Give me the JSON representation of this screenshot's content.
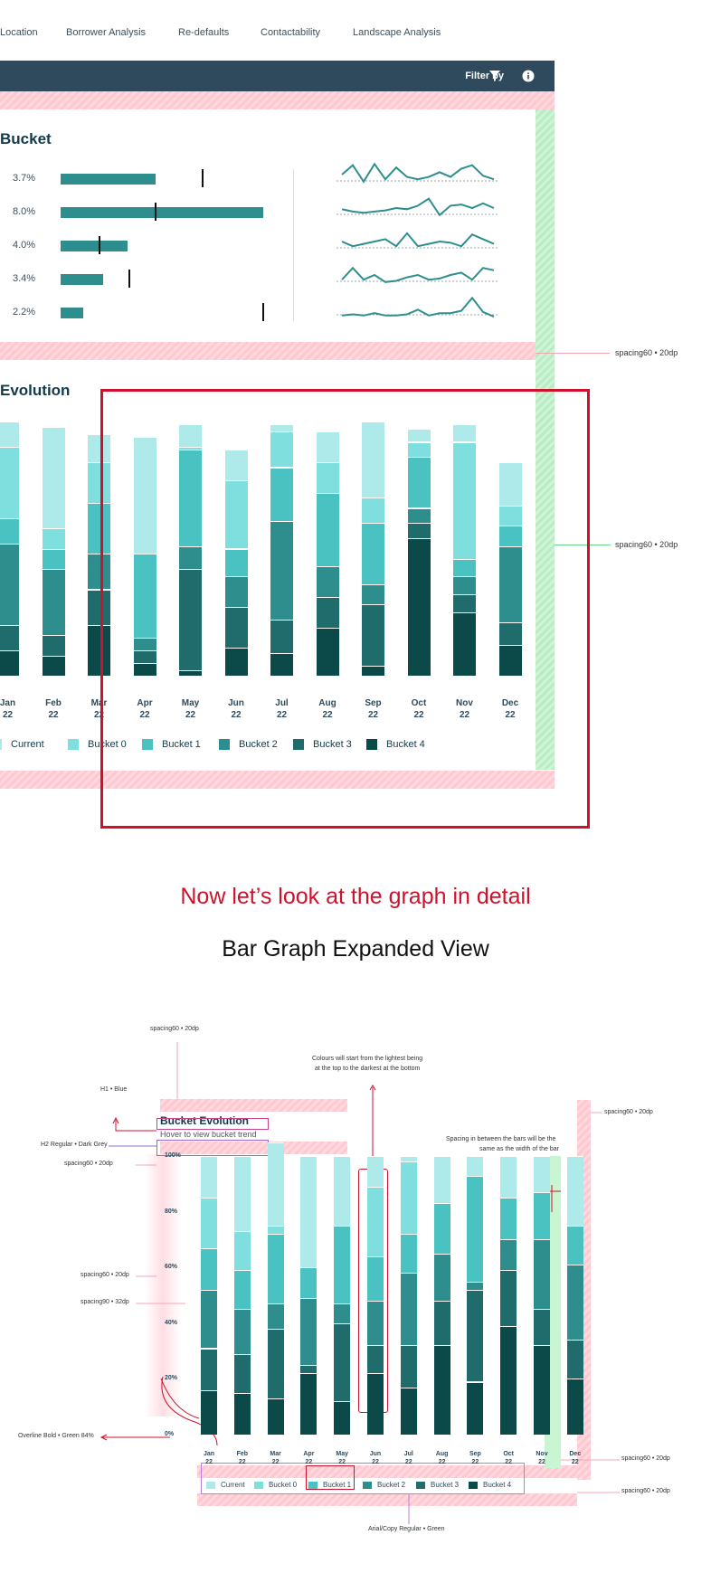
{
  "nav": {
    "items": [
      "Location",
      "Borrower Analysis",
      "Re-defaults",
      "Contactability",
      "Landscape Analysis"
    ]
  },
  "header": {
    "filter_label": "Filter by",
    "filter_icon": "funnel-icon",
    "info_icon": "info-icon"
  },
  "top_card": {
    "title": "Bucket",
    "rows": [
      {
        "pct": "3.7%",
        "bar": 0.47,
        "marker": 0.7
      },
      {
        "pct": "8.0%",
        "bar": 1.0,
        "marker": 0.47
      },
      {
        "pct": "4.0%",
        "bar": 0.33,
        "marker": 0.19
      },
      {
        "pct": "3.4%",
        "bar": 0.21,
        "marker": 0.34
      },
      {
        "pct": "2.2%",
        "bar": 0.11,
        "marker": 1.0
      }
    ],
    "sparklines": [
      [
        0.5,
        0.9,
        0.2,
        0.95,
        0.3,
        0.8,
        0.4,
        0.3,
        0.4,
        0.6,
        0.4,
        0.75,
        0.9,
        0.45,
        0.3
      ],
      [
        0.45,
        0.35,
        0.3,
        0.35,
        0.4,
        0.5,
        0.45,
        0.6,
        0.9,
        0.2,
        0.6,
        0.65,
        0.5,
        0.7,
        0.5
      ],
      [
        0.5,
        0.3,
        0.4,
        0.5,
        0.6,
        0.3,
        0.85,
        0.3,
        0.4,
        0.5,
        0.45,
        0.3,
        0.8,
        0.6,
        0.4
      ],
      [
        0.3,
        0.8,
        0.3,
        0.5,
        0.2,
        0.25,
        0.4,
        0.5,
        0.3,
        0.35,
        0.5,
        0.6,
        0.3,
        0.8,
        0.7
      ],
      [
        0.2,
        0.25,
        0.2,
        0.3,
        0.2,
        0.2,
        0.25,
        0.45,
        0.2,
        0.3,
        0.3,
        0.4,
        0.95,
        0.35,
        0.15
      ]
    ]
  },
  "evolution_title": "Evolution",
  "annotations": {
    "spacing_top_right_1": "spacing60 • 20dp",
    "spacing_top_right_2": "spacing60 • 20dp",
    "headline_red": "Now let’s look at the graph in detail",
    "subhead": "Bar Graph Expanded View",
    "spacing_above_title": "spacing60 • 20dp",
    "colours_note_1": "Colours will start from the lightest being",
    "colours_note_2": "at the top to the darkest at the bottom",
    "h1_note": "H1 • Blue",
    "h2_note": "H2 Regular • Dark Grey",
    "spacing_left_1": "spacing60 • 20dp",
    "spacing_left_2": "spacing60 • 20dp",
    "spacing_left_3": "spacing90 • 32dp",
    "spacing_note_1": "Spacing in between the bars will be the",
    "spacing_note_2": "same as the width of the bar",
    "spacing_right_top": "spacing60 • 20dp",
    "overline_note": "Overline Bold  • Green 84%",
    "spacing_right_bottom_1": "spacing60 • 20dp",
    "spacing_right_bottom_2": "spacing60 • 20dp",
    "legend_note": "Arial/Copy Regular • Green"
  },
  "expanded": {
    "title": "Bucket Evolution",
    "subtitle": "Hover to view bucket trend"
  },
  "chart_data": [
    {
      "type": "bar",
      "stacked": true,
      "categories": [
        "Jan\n22",
        "Feb\n22",
        "Mar\n22",
        "Apr\n22",
        "May\n22",
        "Jun\n22",
        "Jul\n22",
        "Aug\n22",
        "Sep\n22",
        "Oct\n22",
        "Nov\n22",
        "Dec\n22"
      ],
      "series": [
        {
          "name": "Current",
          "color": "#aeeaea",
          "values": [
            10,
            40,
            11,
            46,
            9,
            12,
            3,
            12,
            30,
            5,
            7,
            17
          ]
        },
        {
          "name": "Bucket 0",
          "color": "#7fdede",
          "values": [
            28,
            8,
            16,
            0,
            1,
            27,
            14,
            12,
            10,
            6,
            46,
            8
          ]
        },
        {
          "name": "Bucket 1",
          "color": "#4bc2c2",
          "values": [
            10,
            8,
            20,
            33,
            38,
            11,
            21,
            29,
            24,
            20,
            7,
            8
          ]
        },
        {
          "name": "Bucket 2",
          "color": "#2e8e8e",
          "values": [
            32,
            26,
            14,
            5,
            9,
            12,
            39,
            12,
            8,
            6,
            7,
            30
          ]
        },
        {
          "name": "Bucket 3",
          "color": "#206b6b",
          "values": [
            10,
            8,
            14,
            5,
            40,
            16,
            13,
            12,
            24,
            6,
            7,
            9
          ]
        },
        {
          "name": "Bucket 4",
          "color": "#0c4a4a",
          "values": [
            10,
            8,
            20,
            5,
            2,
            11,
            9,
            19,
            4,
            54,
            25,
            12
          ]
        }
      ],
      "ylim": [
        0,
        100
      ]
    },
    {
      "type": "bar",
      "stacked": true,
      "categories": [
        "Jan\n22",
        "Feb\n22",
        "Mar\n22",
        "Apr\n22",
        "May\n22",
        "Jun\n22",
        "Jul\n22",
        "Aug\n22",
        "Sep\n22",
        "Oct\n22",
        "Nov\n22",
        "Dec\n22"
      ],
      "yticks": [
        "100%",
        "80%",
        "60%",
        "40%",
        "20%",
        "0%"
      ],
      "series": [
        {
          "name": "Current",
          "color": "#aeeaea",
          "values": [
            15,
            27,
            30,
            40,
            25,
            11,
            2,
            17,
            7,
            15,
            13,
            25
          ]
        },
        {
          "name": "Bucket 0",
          "color": "#7fdede",
          "values": [
            18,
            14,
            3,
            0,
            0,
            25,
            26,
            0,
            0,
            0,
            0,
            0
          ]
        },
        {
          "name": "Bucket 1",
          "color": "#4bc2c2",
          "values": [
            15,
            14,
            25,
            11,
            28,
            16,
            14,
            18,
            38,
            15,
            17,
            14
          ]
        },
        {
          "name": "Bucket 2",
          "color": "#2e8e8e",
          "values": [
            21,
            16,
            9,
            24,
            7,
            16,
            26,
            17,
            3,
            11,
            25,
            27
          ]
        },
        {
          "name": "Bucket 3",
          "color": "#206b6b",
          "values": [
            15,
            14,
            25,
            3,
            28,
            10,
            15,
            16,
            33,
            20,
            13,
            14
          ]
        },
        {
          "name": "Bucket 4",
          "color": "#0c4a4a",
          "values": [
            16,
            15,
            13,
            22,
            12,
            22,
            17,
            32,
            19,
            39,
            32,
            20
          ]
        }
      ],
      "ylim": [
        0,
        100
      ]
    }
  ]
}
